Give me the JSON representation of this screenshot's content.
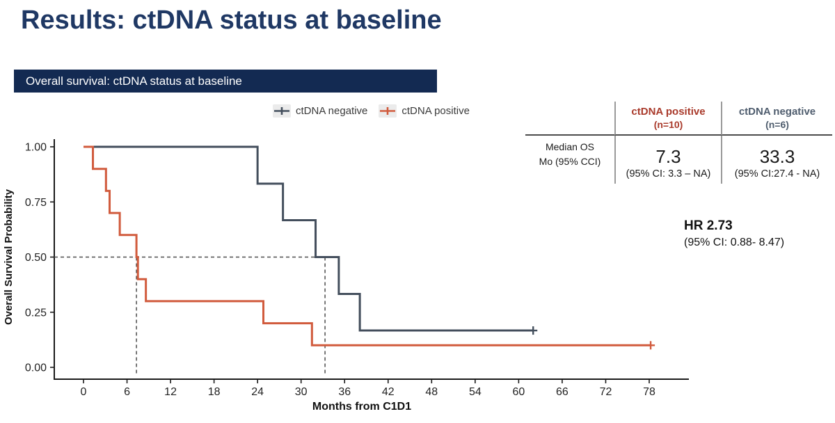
{
  "slide": {
    "title": "Results: ctDNA status at baseline",
    "banner": "Overall survival: ctDNA status at baseline"
  },
  "legend": {
    "items": [
      {
        "label": "ctDNA negative",
        "color": "#434e5c"
      },
      {
        "label": "ctDNA positive",
        "color": "#d15b3d"
      }
    ]
  },
  "chart_data": {
    "type": "line",
    "subtype": "kaplan-meier-step",
    "title": "",
    "xlabel": "Months from C1D1",
    "ylabel": "Overall Survival Probability",
    "xlim": [
      0,
      78
    ],
    "ylim": [
      0,
      1
    ],
    "xticks": [
      0,
      6,
      12,
      18,
      24,
      30,
      36,
      42,
      48,
      54,
      60,
      66,
      72,
      78
    ],
    "ytick_labels": [
      "0.00",
      "0.25",
      "0.50",
      "0.75",
      "1.00"
    ],
    "grid": false,
    "legend_position": "top",
    "series": [
      {
        "name": "ctDNA negative",
        "color": "#434e5c",
        "n": 6,
        "points": [
          [
            0,
            1.0
          ],
          [
            24,
            0.833
          ],
          [
            27.5,
            0.667
          ],
          [
            32,
            0.5
          ],
          [
            35.2,
            0.333
          ],
          [
            38.1,
            0.167
          ],
          [
            62,
            0.167
          ]
        ],
        "censored": [
          [
            62,
            0.167
          ]
        ]
      },
      {
        "name": "ctDNA positive",
        "color": "#d15b3d",
        "n": 10,
        "points": [
          [
            0,
            1.0
          ],
          [
            1.3,
            0.9
          ],
          [
            3.1,
            0.8
          ],
          [
            3.6,
            0.7
          ],
          [
            5.0,
            0.6
          ],
          [
            7.3,
            0.5
          ],
          [
            7.5,
            0.4
          ],
          [
            8.6,
            0.3
          ],
          [
            24.8,
            0.2
          ],
          [
            31.5,
            0.1
          ],
          [
            78.2,
            0.1
          ]
        ],
        "censored": [
          [
            78.2,
            0.1
          ]
        ]
      }
    ],
    "median_annotations": {
      "style": "dashed",
      "y": 0.5,
      "x_values": [
        7.3,
        33.3
      ],
      "color": "#4a4a4a"
    }
  },
  "os_table": {
    "row_label_line1": "Median OS",
    "row_label_line2": "Mo (95% CCI)",
    "columns": [
      {
        "header_line1": "ctDNA positive",
        "header_line2": "(n=10)",
        "color": "#a93a2b",
        "median": "7.3",
        "ci": "(95% CI: 3.3 – NA)"
      },
      {
        "header_line1": "ctDNA negative",
        "header_line2": "(n=6)",
        "color": "#4f5d6e",
        "median": "33.3",
        "ci": "(95% CI:27.4 - NA)"
      }
    ]
  },
  "hr_annotation": {
    "line1": "HR 2.73",
    "line2": "(95% CI: 0.88- 8.47)"
  }
}
